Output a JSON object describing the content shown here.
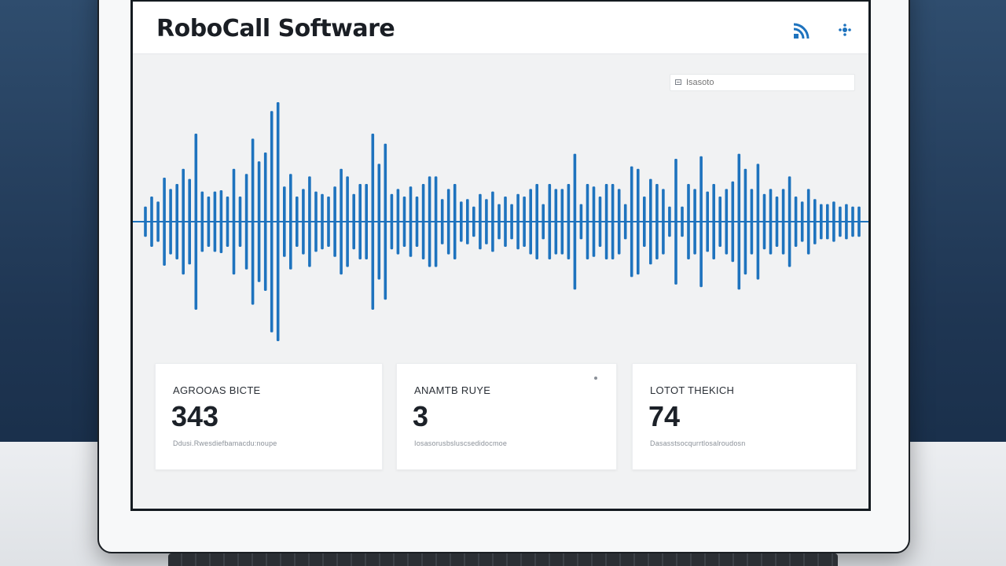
{
  "app": {
    "title": "RoboCall Software"
  },
  "header_icons": [
    "signal-icon",
    "settings-icon"
  ],
  "search": {
    "placeholder": "Isasoto"
  },
  "waveform": {
    "color": "#1e73be",
    "baseline_color": "#1e73be",
    "amplitudes": [
      0.12,
      0.2,
      0.16,
      0.35,
      0.26,
      0.3,
      0.42,
      0.34,
      0.7,
      0.24,
      0.2,
      0.24,
      0.25,
      0.2,
      0.42,
      0.2,
      0.38,
      0.66,
      0.48,
      0.55,
      0.88,
      0.95,
      0.28,
      0.38,
      0.2,
      0.26,
      0.36,
      0.24,
      0.22,
      0.2,
      0.28,
      0.42,
      0.36,
      0.22,
      0.3,
      0.3,
      0.7,
      0.46,
      0.62,
      0.22,
      0.26,
      0.2,
      0.28,
      0.2,
      0.3,
      0.36,
      0.36,
      0.18,
      0.26,
      0.3,
      0.16,
      0.18,
      0.12,
      0.22,
      0.18,
      0.24,
      0.14,
      0.2,
      0.14,
      0.22,
      0.2,
      0.26,
      0.3,
      0.14,
      0.3,
      0.26,
      0.26,
      0.3,
      0.54,
      0.14,
      0.3,
      0.28,
      0.2,
      0.3,
      0.3,
      0.26,
      0.14,
      0.44,
      0.42,
      0.2,
      0.34,
      0.3,
      0.26,
      0.12,
      0.5,
      0.12,
      0.3,
      0.26,
      0.52,
      0.24,
      0.3,
      0.2,
      0.26,
      0.32,
      0.54,
      0.42,
      0.26,
      0.46,
      0.22,
      0.26,
      0.2,
      0.26,
      0.36,
      0.2,
      0.16,
      0.26,
      0.18,
      0.14,
      0.14,
      0.16,
      0.12,
      0.14,
      0.12,
      0.12
    ]
  },
  "cards": [
    {
      "label": "AGROOAS BICTE",
      "value": "343",
      "sub": "Ddusi.Rwesdiefbamacdu:noupe",
      "dot": false
    },
    {
      "label": "ANAMTB RUYE",
      "value": "3",
      "sub": "Iosasorusbsluscsedidocmoe",
      "dot": true
    },
    {
      "label": "LOTOT THEKICH",
      "value": "74",
      "sub": "Dasasstsocqurrtlosalroudosn",
      "dot": false
    }
  ]
}
